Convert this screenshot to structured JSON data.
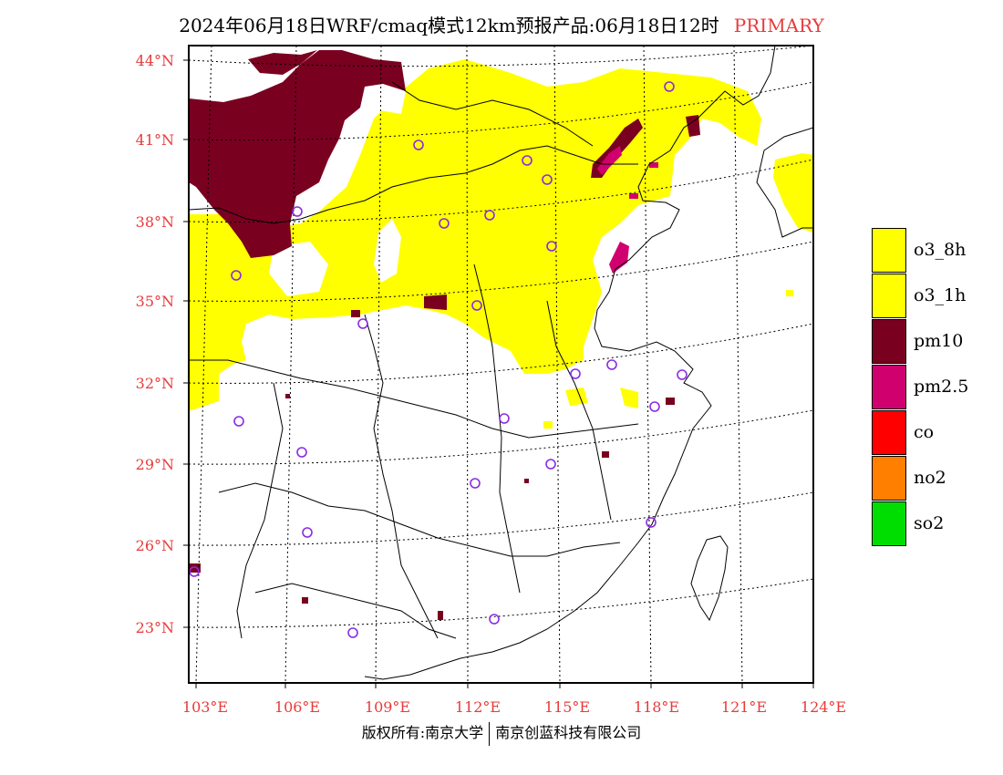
{
  "header": {
    "title": "2024年06月18日WRF/cmaq模式12km预报产品:06月18日12时",
    "tag": "PRIMARY"
  },
  "map": {
    "lat_labels": [
      "44°N",
      "41°N",
      "38°N",
      "35°N",
      "32°N",
      "29°N",
      "26°N",
      "23°N"
    ],
    "lon_labels": [
      "103°E",
      "106°E",
      "109°E",
      "112°E",
      "115°E",
      "118°E",
      "121°E",
      "124°E"
    ],
    "label_color": "#e83a3a",
    "primary_pollutant_colors": {
      "o3": "#ffff00",
      "pm10": "#7a0020",
      "pm25": "#d0006f"
    }
  },
  "legend": {
    "items": [
      {
        "label": "o3_8h",
        "color": "#ffff00"
      },
      {
        "label": "o3_1h",
        "color": "#ffff00"
      },
      {
        "label": "pm10",
        "color": "#7a0020"
      },
      {
        "label": "pm2.5",
        "color": "#d0006f"
      },
      {
        "label": "co",
        "color": "#ff0000"
      },
      {
        "label": "no2",
        "color": "#ff7f00"
      },
      {
        "label": "so2",
        "color": "#00dd00"
      }
    ]
  },
  "footer": {
    "left": "版权所有:南京大学",
    "right": "南京创蓝科技有限公司"
  }
}
